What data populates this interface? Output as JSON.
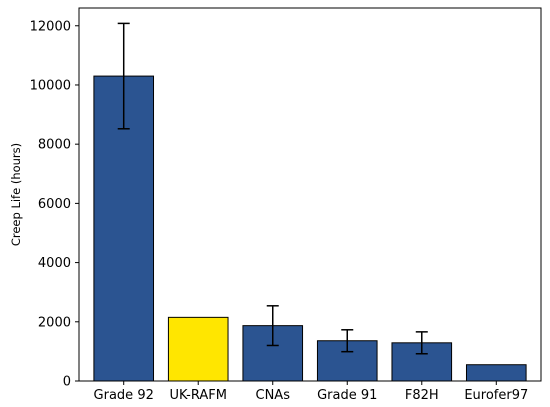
{
  "chart_data": {
    "type": "bar",
    "title": "",
    "xlabel": "",
    "ylabel": "Creep Life (hours)",
    "ylim": [
      0,
      12600
    ],
    "yticks": [
      0,
      2000,
      4000,
      6000,
      8000,
      10000,
      12000
    ],
    "ytick_labels": [
      "0",
      "2000",
      "4000",
      "6000",
      "8000",
      "10000",
      "12000"
    ],
    "categories": [
      "Grade 92",
      "UK-RAFM",
      "CNAs",
      "Grade 91",
      "F82H",
      "Eurofer97"
    ],
    "values": [
      10300,
      2150,
      1870,
      1360,
      1290,
      550
    ],
    "error_low": [
      8520,
      null,
      1200,
      990,
      920,
      null
    ],
    "error_high": [
      12080,
      null,
      2540,
      1730,
      1660,
      null
    ],
    "bar_colors": [
      "#2b5491",
      "#ffe600",
      "#2b5491",
      "#2b5491",
      "#2b5491",
      "#2b5491"
    ],
    "edge_color": "#000000",
    "grid": false,
    "legend": "none"
  }
}
